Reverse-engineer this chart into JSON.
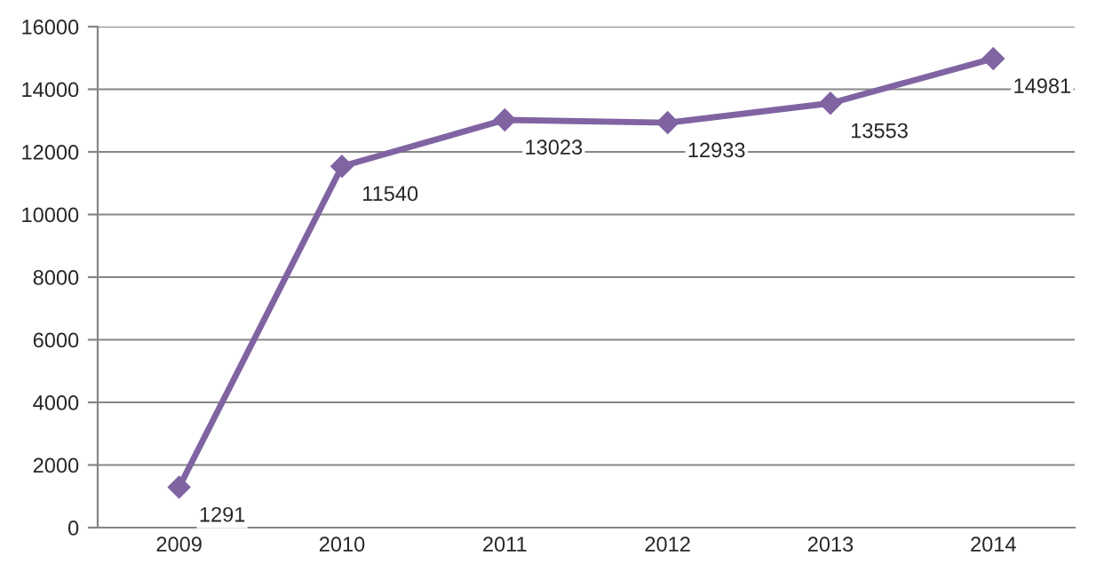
{
  "chart_data": {
    "type": "line",
    "categories": [
      "2009",
      "2010",
      "2011",
      "2012",
      "2013",
      "2014"
    ],
    "series": [
      {
        "color": "#8064a2",
        "values": [
          1291,
          11540,
          13023,
          12933,
          13553,
          14981
        ]
      }
    ],
    "ylim": [
      0,
      16000
    ],
    "yticks": [
      0,
      2000,
      4000,
      6000,
      8000,
      10000,
      12000,
      14000,
      16000
    ],
    "grid": "y",
    "marker": "diamond",
    "line_style": "solid",
    "data_labels": true,
    "legend": false
  }
}
